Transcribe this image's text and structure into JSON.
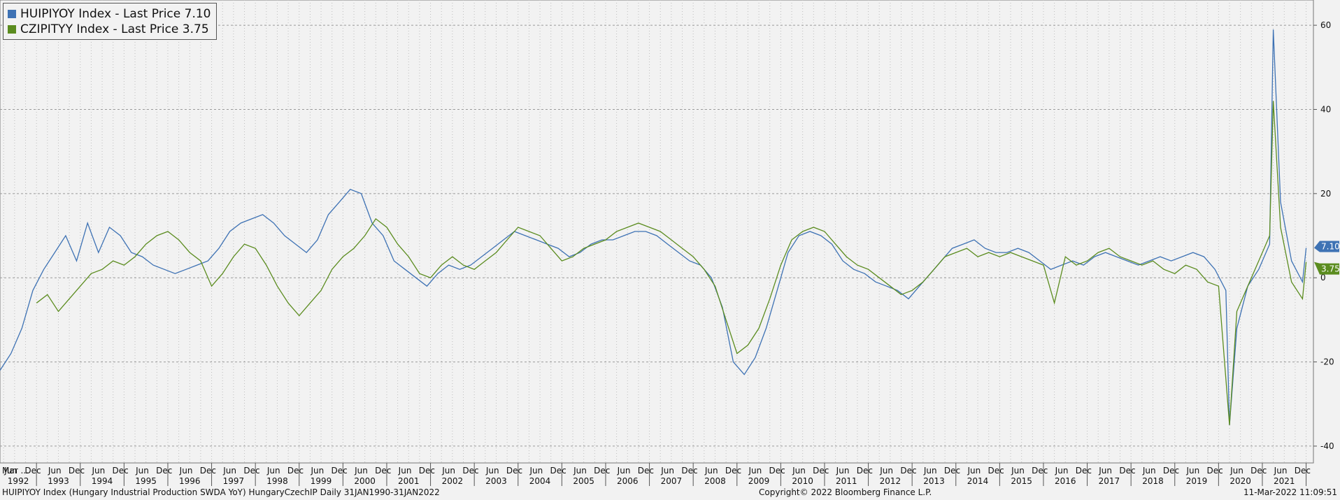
{
  "legend": [
    {
      "label": "HUIPIYOY Index - Last Price 7.10",
      "color": "#3e72b4"
    },
    {
      "label": "CZIPITYY Index - Last Price  3.75",
      "color": "#5b8c1f"
    }
  ],
  "footer": {
    "left": "HUIPIYOY Index (Hungary Industrial Production SWDA YoY) HungaryCzechIP  Daily 31JAN1990-31JAN2022",
    "center": "Copyright© 2022 Bloomberg Finance L.P.",
    "right": "11-Mar-2022 11:09:51"
  },
  "chart_data": {
    "type": "line",
    "ylim": [
      -44,
      66
    ],
    "y_ticks": [
      -40,
      -20,
      0,
      20,
      40,
      60
    ],
    "grid": true,
    "legend_position": "top-left",
    "x_month_labels": {
      "first": "Mar ...",
      "pattern": [
        "Jun",
        "Dec"
      ]
    },
    "x_year_labels": [
      "1992",
      "1993",
      "1994",
      "1995",
      "1996",
      "1997",
      "1998",
      "1999",
      "2000",
      "2001",
      "2002",
      "2003",
      "2004",
      "2005",
      "2006",
      "2007",
      "2008",
      "2009",
      "2010",
      "2011",
      "2012",
      "2013",
      "2014",
      "2015",
      "2016",
      "2017",
      "2018",
      "2019",
      "2020",
      "2021"
    ],
    "series": [
      {
        "name": "HUIPIYOY Index",
        "color": "#3e72b4",
        "last_value": 7.1,
        "points": [
          [
            "1992-03",
            -22
          ],
          [
            "1992-06",
            -18
          ],
          [
            "1992-09",
            -12
          ],
          [
            "1992-12",
            -3
          ],
          [
            "1993-03",
            2
          ],
          [
            "1993-06",
            6
          ],
          [
            "1993-09",
            10
          ],
          [
            "1993-12",
            4
          ],
          [
            "1994-03",
            13
          ],
          [
            "1994-06",
            6
          ],
          [
            "1994-09",
            12
          ],
          [
            "1994-12",
            10
          ],
          [
            "1995-03",
            6
          ],
          [
            "1995-06",
            5
          ],
          [
            "1995-09",
            3
          ],
          [
            "1995-12",
            2
          ],
          [
            "1996-03",
            1
          ],
          [
            "1996-06",
            2
          ],
          [
            "1996-09",
            3
          ],
          [
            "1996-12",
            4
          ],
          [
            "1997-03",
            7
          ],
          [
            "1997-06",
            11
          ],
          [
            "1997-09",
            13
          ],
          [
            "1997-12",
            14
          ],
          [
            "1998-03",
            15
          ],
          [
            "1998-06",
            13
          ],
          [
            "1998-09",
            10
          ],
          [
            "1998-12",
            8
          ],
          [
            "1999-03",
            6
          ],
          [
            "1999-06",
            9
          ],
          [
            "1999-09",
            15
          ],
          [
            "1999-12",
            18
          ],
          [
            "2000-03",
            21
          ],
          [
            "2000-06",
            20
          ],
          [
            "2000-09",
            13
          ],
          [
            "2000-12",
            10
          ],
          [
            "2001-03",
            4
          ],
          [
            "2001-06",
            2
          ],
          [
            "2001-09",
            0
          ],
          [
            "2001-12",
            -2
          ],
          [
            "2002-03",
            1
          ],
          [
            "2002-06",
            3
          ],
          [
            "2002-09",
            2
          ],
          [
            "2002-12",
            3
          ],
          [
            "2003-03",
            5
          ],
          [
            "2003-06",
            7
          ],
          [
            "2003-09",
            9
          ],
          [
            "2003-12",
            11
          ],
          [
            "2004-03",
            10
          ],
          [
            "2004-06",
            9
          ],
          [
            "2004-09",
            8
          ],
          [
            "2004-12",
            7
          ],
          [
            "2005-03",
            5
          ],
          [
            "2005-06",
            6
          ],
          [
            "2005-09",
            8
          ],
          [
            "2005-12",
            9
          ],
          [
            "2006-03",
            9
          ],
          [
            "2006-06",
            10
          ],
          [
            "2006-09",
            11
          ],
          [
            "2006-12",
            11
          ],
          [
            "2007-03",
            10
          ],
          [
            "2007-06",
            8
          ],
          [
            "2007-09",
            6
          ],
          [
            "2007-12",
            4
          ],
          [
            "2008-03",
            3
          ],
          [
            "2008-06",
            0
          ],
          [
            "2008-09",
            -7
          ],
          [
            "2008-12",
            -20
          ],
          [
            "2009-03",
            -23
          ],
          [
            "2009-06",
            -19
          ],
          [
            "2009-09",
            -12
          ],
          [
            "2009-12",
            -3
          ],
          [
            "2010-03",
            6
          ],
          [
            "2010-06",
            10
          ],
          [
            "2010-09",
            11
          ],
          [
            "2010-12",
            10
          ],
          [
            "2011-03",
            8
          ],
          [
            "2011-06",
            4
          ],
          [
            "2011-09",
            2
          ],
          [
            "2011-12",
            1
          ],
          [
            "2012-03",
            -1
          ],
          [
            "2012-06",
            -2
          ],
          [
            "2012-09",
            -3
          ],
          [
            "2012-12",
            -5
          ],
          [
            "2013-03",
            -2
          ],
          [
            "2013-06",
            1
          ],
          [
            "2013-09",
            4
          ],
          [
            "2013-12",
            7
          ],
          [
            "2014-03",
            8
          ],
          [
            "2014-06",
            9
          ],
          [
            "2014-09",
            7
          ],
          [
            "2014-12",
            6
          ],
          [
            "2015-03",
            6
          ],
          [
            "2015-06",
            7
          ],
          [
            "2015-09",
            6
          ],
          [
            "2015-12",
            4
          ],
          [
            "2016-03",
            2
          ],
          [
            "2016-06",
            3
          ],
          [
            "2016-09",
            4
          ],
          [
            "2016-12",
            3
          ],
          [
            "2017-03",
            5
          ],
          [
            "2017-06",
            6
          ],
          [
            "2017-09",
            5
          ],
          [
            "2017-12",
            4
          ],
          [
            "2018-03",
            3
          ],
          [
            "2018-06",
            4
          ],
          [
            "2018-09",
            5
          ],
          [
            "2018-12",
            4
          ],
          [
            "2019-03",
            5
          ],
          [
            "2019-06",
            6
          ],
          [
            "2019-09",
            5
          ],
          [
            "2019-12",
            2
          ],
          [
            "2020-03",
            -3
          ],
          [
            "2020-04",
            -35
          ],
          [
            "2020-06",
            -12
          ],
          [
            "2020-09",
            -2
          ],
          [
            "2020-12",
            2
          ],
          [
            "2021-03",
            8
          ],
          [
            "2021-04",
            59
          ],
          [
            "2021-06",
            18
          ],
          [
            "2021-09",
            4
          ],
          [
            "2021-12",
            -1
          ],
          [
            "2022-01",
            7.1
          ]
        ]
      },
      {
        "name": "CZIPITYY Index",
        "color": "#5b8c1f",
        "last_value": 3.75,
        "points": [
          [
            "1993-01",
            -6
          ],
          [
            "1993-04",
            -4
          ],
          [
            "1993-07",
            -8
          ],
          [
            "1993-10",
            -5
          ],
          [
            "1994-01",
            -2
          ],
          [
            "1994-04",
            1
          ],
          [
            "1994-07",
            2
          ],
          [
            "1994-10",
            4
          ],
          [
            "1995-01",
            3
          ],
          [
            "1995-04",
            5
          ],
          [
            "1995-07",
            8
          ],
          [
            "1995-10",
            10
          ],
          [
            "1996-01",
            11
          ],
          [
            "1996-04",
            9
          ],
          [
            "1996-07",
            6
          ],
          [
            "1996-10",
            4
          ],
          [
            "1997-01",
            -2
          ],
          [
            "1997-04",
            1
          ],
          [
            "1997-07",
            5
          ],
          [
            "1997-10",
            8
          ],
          [
            "1998-01",
            7
          ],
          [
            "1998-04",
            3
          ],
          [
            "1998-07",
            -2
          ],
          [
            "1998-10",
            -6
          ],
          [
            "1999-01",
            -9
          ],
          [
            "1999-04",
            -6
          ],
          [
            "1999-07",
            -3
          ],
          [
            "1999-10",
            2
          ],
          [
            "2000-01",
            5
          ],
          [
            "2000-04",
            7
          ],
          [
            "2000-07",
            10
          ],
          [
            "2000-10",
            14
          ],
          [
            "2001-01",
            12
          ],
          [
            "2001-04",
            8
          ],
          [
            "2001-07",
            5
          ],
          [
            "2001-10",
            1
          ],
          [
            "2002-01",
            0
          ],
          [
            "2002-04",
            3
          ],
          [
            "2002-07",
            5
          ],
          [
            "2002-10",
            3
          ],
          [
            "2003-01",
            2
          ],
          [
            "2003-04",
            4
          ],
          [
            "2003-07",
            6
          ],
          [
            "2003-10",
            9
          ],
          [
            "2004-01",
            12
          ],
          [
            "2004-04",
            11
          ],
          [
            "2004-07",
            10
          ],
          [
            "2004-10",
            7
          ],
          [
            "2005-01",
            4
          ],
          [
            "2005-04",
            5
          ],
          [
            "2005-07",
            7
          ],
          [
            "2005-10",
            8
          ],
          [
            "2006-01",
            9
          ],
          [
            "2006-04",
            11
          ],
          [
            "2006-07",
            12
          ],
          [
            "2006-10",
            13
          ],
          [
            "2007-01",
            12
          ],
          [
            "2007-04",
            11
          ],
          [
            "2007-07",
            9
          ],
          [
            "2007-10",
            7
          ],
          [
            "2008-01",
            5
          ],
          [
            "2008-04",
            2
          ],
          [
            "2008-07",
            -2
          ],
          [
            "2008-10",
            -10
          ],
          [
            "2009-01",
            -18
          ],
          [
            "2009-04",
            -16
          ],
          [
            "2009-07",
            -12
          ],
          [
            "2009-10",
            -5
          ],
          [
            "2010-01",
            3
          ],
          [
            "2010-04",
            9
          ],
          [
            "2010-07",
            11
          ],
          [
            "2010-10",
            12
          ],
          [
            "2011-01",
            11
          ],
          [
            "2011-04",
            8
          ],
          [
            "2011-07",
            5
          ],
          [
            "2011-10",
            3
          ],
          [
            "2012-01",
            2
          ],
          [
            "2012-04",
            0
          ],
          [
            "2012-07",
            -2
          ],
          [
            "2012-10",
            -4
          ],
          [
            "2013-01",
            -3
          ],
          [
            "2013-04",
            -1
          ],
          [
            "2013-07",
            2
          ],
          [
            "2013-10",
            5
          ],
          [
            "2014-01",
            6
          ],
          [
            "2014-04",
            7
          ],
          [
            "2014-07",
            5
          ],
          [
            "2014-10",
            6
          ],
          [
            "2015-01",
            5
          ],
          [
            "2015-04",
            6
          ],
          [
            "2015-07",
            5
          ],
          [
            "2015-10",
            4
          ],
          [
            "2016-01",
            3
          ],
          [
            "2016-04",
            -6
          ],
          [
            "2016-07",
            5
          ],
          [
            "2016-10",
            3
          ],
          [
            "2017-01",
            4
          ],
          [
            "2017-04",
            6
          ],
          [
            "2017-07",
            7
          ],
          [
            "2017-10",
            5
          ],
          [
            "2018-01",
            4
          ],
          [
            "2018-04",
            3
          ],
          [
            "2018-07",
            4
          ],
          [
            "2018-10",
            2
          ],
          [
            "2019-01",
            1
          ],
          [
            "2019-04",
            3
          ],
          [
            "2019-07",
            2
          ],
          [
            "2019-10",
            -1
          ],
          [
            "2020-01",
            -2
          ],
          [
            "2020-04",
            -35
          ],
          [
            "2020-06",
            -8
          ],
          [
            "2020-09",
            -2
          ],
          [
            "2020-12",
            4
          ],
          [
            "2021-03",
            10
          ],
          [
            "2021-04",
            42
          ],
          [
            "2021-06",
            12
          ],
          [
            "2021-09",
            -1
          ],
          [
            "2021-12",
            -5
          ],
          [
            "2022-01",
            3.75
          ]
        ]
      }
    ]
  }
}
